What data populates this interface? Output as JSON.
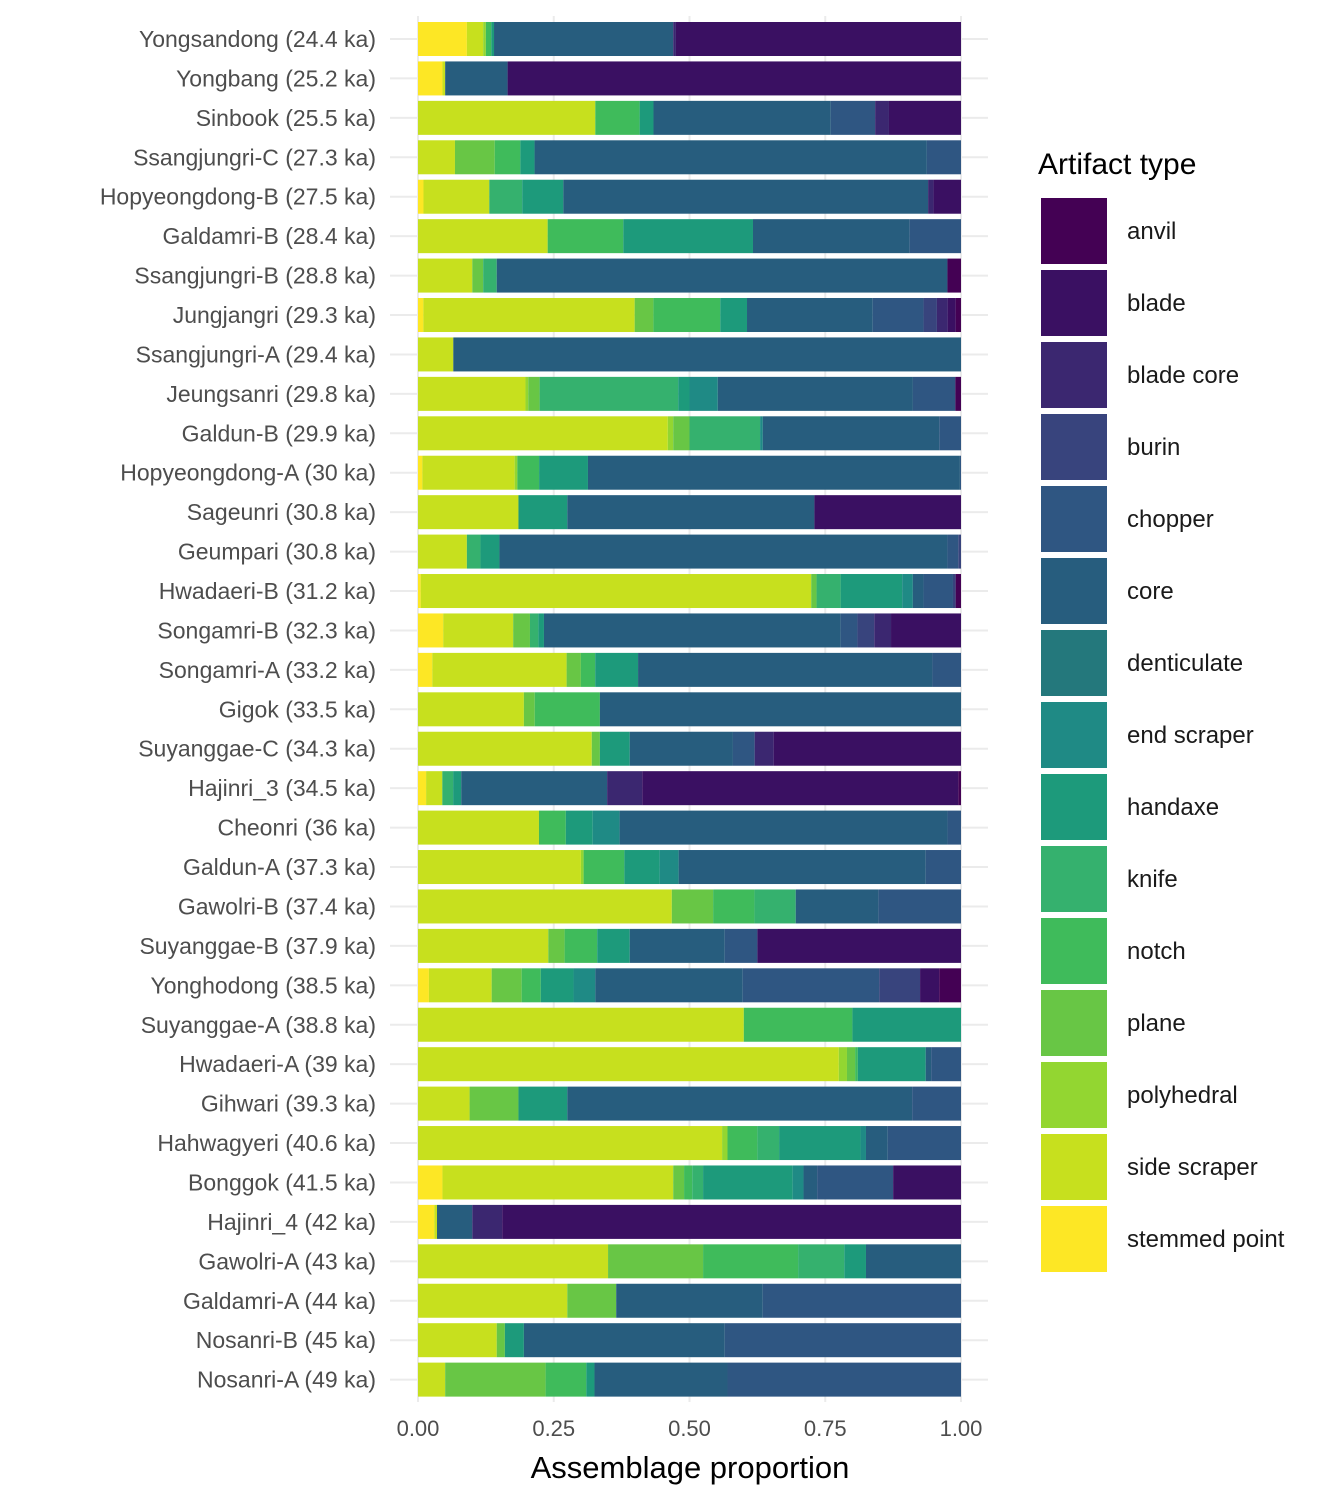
{
  "chart_data": {
    "type": "bar",
    "orientation": "horizontal",
    "stacked": true,
    "xlabel": "Assemblage proportion",
    "ylabel": "",
    "xlim": [
      0,
      1
    ],
    "x_ticks": [
      "0.00",
      "0.25",
      "0.50",
      "0.75",
      "1.00"
    ],
    "grid": true,
    "legend": {
      "title": "Artifact type",
      "placement": "right"
    },
    "artifact_types": [
      "anvil",
      "blade",
      "blade core",
      "burin",
      "chopper",
      "core",
      "denticulate",
      "end scraper",
      "handaxe",
      "knife",
      "notch",
      "plane",
      "polyhedral",
      "side scraper",
      "stemmed point"
    ],
    "colors": {
      "anvil": "#440154",
      "blade": "#3a1062",
      "blade core": "#3b2770",
      "burin": "#38447d",
      "chopper": "#2f5682",
      "core": "#275d7e",
      "denticulate": "#24787c",
      "end scraper": "#1f8a85",
      "handaxe": "#1d9a7b",
      "knife": "#35b16e",
      "notch": "#3fbb5b",
      "plane": "#68c645",
      "polyhedral": "#93d631",
      "side scraper": "#c7e01e",
      "stemmed point": "#fde725"
    },
    "stack_order": [
      "stemmed point",
      "side scraper",
      "polyhedral",
      "plane",
      "notch",
      "knife",
      "handaxe",
      "end scraper",
      "denticulate",
      "core",
      "chopper",
      "burin",
      "blade core",
      "blade",
      "anvil"
    ],
    "categories": [
      "Yongsandong (24.4 ka)",
      "Yongbang (25.2 ka)",
      "Sinbook (25.5 ka)",
      "Ssangjungri-C (27.3 ka)",
      "Hopyeongdong-B (27.5 ka)",
      "Galdamri-B (28.4 ka)",
      "Ssangjungri-B (28.8 ka)",
      "Jungjangri (29.3 ka)",
      "Ssangjungri-A (29.4 ka)",
      "Jeungsanri (29.8 ka)",
      "Galdun-B (29.9 ka)",
      "Hopyeongdong-A (30 ka)",
      "Sageunri (30.8 ka)",
      "Geumpari (30.8 ka)",
      "Hwadaeri-B (31.2 ka)",
      "Songamri-B (32.3 ka)",
      "Songamri-A (33.2 ka)",
      "Gigok (33.5 ka)",
      "Suyanggae-C (34.3 ka)",
      "Hajinri_3 (34.5 ka)",
      "Cheonri (36 ka)",
      "Galdun-A (37.3 ka)",
      "Gawolri-B (37.4 ka)",
      "Suyanggae-B (37.9 ka)",
      "Yonghodong (38.5 ka)",
      "Suyanggae-A (38.8 ka)",
      "Hwadaeri-A (39 ka)",
      "Gihwari (39.3 ka)",
      "Hahwagyeri (40.6 ka)",
      "Bonggok (41.5 ka)",
      "Hajinri_4 (42 ka)",
      "Gawolri-A (43 ka)",
      "Galdamri-A (44 ka)",
      "Nosanri-B (45 ka)",
      "Nosanri-A (49 ka)"
    ],
    "series": [
      {
        "name": "stemmed point",
        "values": [
          0.09,
          0.045,
          0,
          0,
          0.01,
          0,
          0,
          0.01,
          0,
          0,
          0,
          0.008,
          0,
          0,
          0.005,
          0.045,
          0.025,
          0,
          0,
          0.015,
          0,
          0,
          0,
          0,
          0.02,
          0,
          0,
          0,
          0,
          0.045,
          0.03,
          0,
          0,
          0,
          0
        ]
      },
      {
        "name": "side scraper",
        "values": [
          0.03,
          0.005,
          0.32,
          0.065,
          0.12,
          0.24,
          0.1,
          0.395,
          0.065,
          0.19,
          0.46,
          0.17,
          0.185,
          0.09,
          0.73,
          0.125,
          0.235,
          0.195,
          0.32,
          0.03,
          0.225,
          0.3,
          0.43,
          0.24,
          0.115,
          0.6,
          0.775,
          0.095,
          0.56,
          0.425,
          0.005,
          0.35,
          0.275,
          0.145,
          0.05
        ]
      },
      {
        "name": "polyhedral",
        "values": [
          0.005,
          0,
          0,
          0,
          0,
          0,
          0,
          0,
          0,
          0.005,
          0.01,
          0.005,
          0,
          0,
          0,
          0,
          0,
          0,
          0,
          0,
          0,
          0.005,
          0,
          0,
          0,
          0,
          0.015,
          0,
          0.01,
          0,
          0,
          0,
          0,
          0,
          0
        ]
      },
      {
        "name": "plane",
        "values": [
          0,
          0,
          0,
          0.07,
          0,
          0,
          0.02,
          0.035,
          0,
          0.02,
          0.03,
          0,
          0,
          0,
          0.01,
          0.03,
          0.025,
          0.02,
          0.015,
          0,
          0,
          0,
          0.07,
          0.03,
          0.055,
          0,
          0.015,
          0.09,
          0,
          0.02,
          0,
          0.175,
          0.09,
          0.015,
          0.185
        ]
      },
      {
        "name": "notch",
        "values": [
          0.01,
          0,
          0.08,
          0.045,
          0,
          0.14,
          0,
          0.125,
          0,
          0,
          0,
          0.04,
          0,
          0,
          0,
          0,
          0.025,
          0.12,
          0,
          0,
          0.05,
          0.075,
          0.07,
          0.06,
          0.035,
          0.2,
          0.005,
          0,
          0.055,
          0.015,
          0,
          0.175,
          0,
          0,
          0.075
        ]
      },
      {
        "name": "knife",
        "values": [
          0,
          0,
          0,
          0,
          0.06,
          0,
          0.025,
          0,
          0,
          0.245,
          0.13,
          0,
          0,
          0.025,
          0.045,
          0.015,
          0,
          0,
          0,
          0.02,
          0,
          0,
          0.07,
          0,
          0,
          0,
          0,
          0,
          0.04,
          0.02,
          0,
          0.085,
          0,
          0,
          0
        ]
      },
      {
        "name": "handaxe",
        "values": [
          0.005,
          0,
          0.025,
          0.025,
          0.075,
          0.24,
          0,
          0.05,
          0,
          0.02,
          0,
          0.09,
          0.09,
          0.035,
          0.115,
          0.01,
          0.075,
          0,
          0.055,
          0.015,
          0.05,
          0.065,
          0,
          0.06,
          0.06,
          0.2,
          0.125,
          0.09,
          0.15,
          0.165,
          0,
          0.04,
          0,
          0.035,
          0.015
        ]
      },
      {
        "name": "end scraper",
        "values": [
          0,
          0,
          0,
          0,
          0,
          0,
          0,
          0,
          0,
          0.05,
          0.005,
          0,
          0,
          0,
          0.02,
          0,
          0,
          0,
          0,
          0,
          0.05,
          0.035,
          0,
          0,
          0.04,
          0,
          0,
          0,
          0.01,
          0.02,
          0,
          0,
          0,
          0,
          0
        ]
      },
      {
        "name": "core",
        "values": [
          0.33,
          0.115,
          0.32,
          0.69,
          0.665,
          0.29,
          0.83,
          0.235,
          0.935,
          0.345,
          0.325,
          0.685,
          0.455,
          0.825,
          0.02,
          0.53,
          0.515,
          0.665,
          0.19,
          0.27,
          0.61,
          0.455,
          0.14,
          0.175,
          0.27,
          0,
          0.01,
          0.635,
          0.04,
          0.025,
          0.065,
          0.175,
          0.27,
          0.37,
          0.245
        ]
      },
      {
        "name": "chopper",
        "values": [
          0,
          0,
          0.08,
          0.06,
          0,
          0.095,
          0,
          0.095,
          0,
          0.075,
          0.04,
          0.002,
          0,
          0.02,
          0.055,
          0.03,
          0.05,
          0,
          0.04,
          0,
          0.025,
          0.065,
          0.14,
          0.06,
          0.25,
          0,
          0.055,
          0.09,
          0.135,
          0.14,
          0,
          0,
          0.365,
          0.435,
          0.43
        ]
      },
      {
        "name": "burin",
        "values": [
          0,
          0,
          0,
          0,
          0,
          0,
          0,
          0.025,
          0,
          0,
          0,
          0,
          0,
          0.005,
          0.005,
          0.03,
          0,
          0,
          0,
          0,
          0,
          0,
          0,
          0,
          0.075,
          0,
          0,
          0,
          0,
          0,
          0,
          0,
          0,
          0,
          0
        ]
      },
      {
        "name": "blade core",
        "values": [
          0.005,
          0,
          0.025,
          0,
          0.01,
          0,
          0,
          0.02,
          0,
          0,
          0,
          0,
          0,
          0,
          0,
          0.03,
          0,
          0,
          0.035,
          0.065,
          0,
          0,
          0,
          0,
          0,
          0,
          0,
          0,
          0,
          0,
          0.055,
          0,
          0,
          0,
          0
        ]
      },
      {
        "name": "blade",
        "values": [
          0.525,
          0.835,
          0.13,
          0,
          0.05,
          0,
          0,
          0.015,
          0,
          0,
          0,
          0,
          0.27,
          0,
          0,
          0.125,
          0,
          0,
          0.345,
          0.585,
          0,
          0,
          0,
          0.375,
          0.035,
          0,
          0,
          0,
          0,
          0.125,
          0.845,
          0,
          0,
          0,
          0
        ]
      },
      {
        "name": "anvil",
        "values": [
          0,
          0,
          0,
          0,
          0,
          0,
          0.025,
          0.01,
          0,
          0.01,
          0,
          0,
          0,
          0,
          0.01,
          0,
          0,
          0,
          0,
          0.005,
          0,
          0,
          0,
          0,
          0.04,
          0,
          0,
          0,
          0,
          0,
          0,
          0,
          0,
          0,
          0
        ]
      }
    ]
  }
}
